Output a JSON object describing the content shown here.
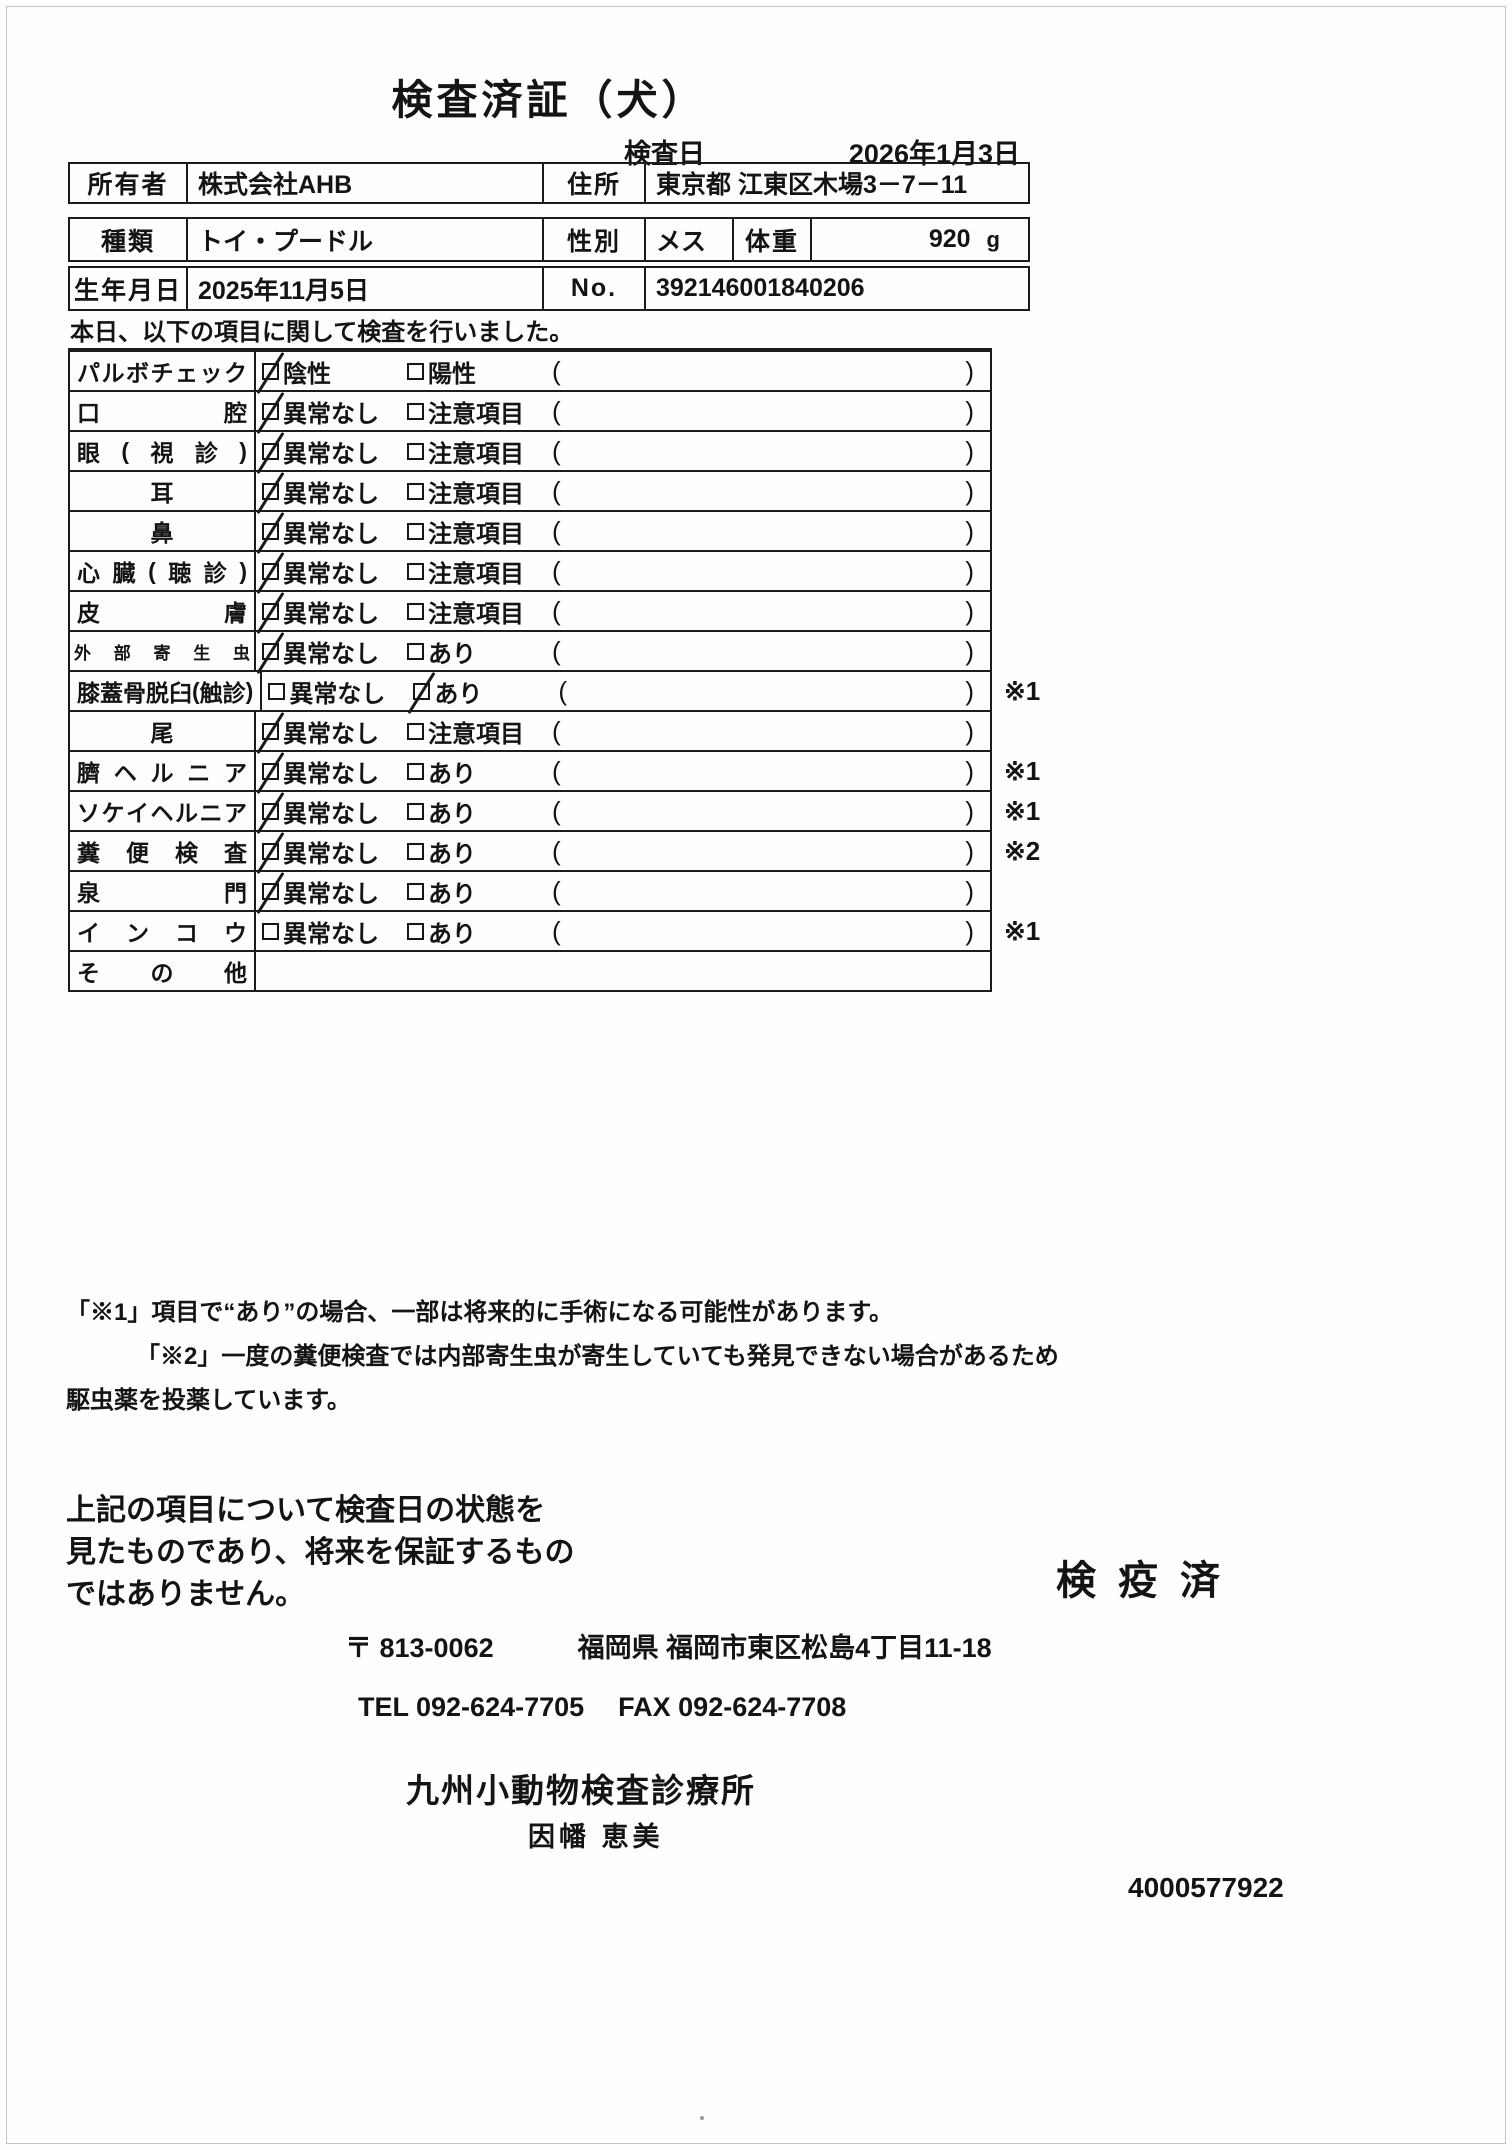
{
  "header": {
    "title": "検査済証（犬）",
    "date_label": "検査日",
    "date_value": "2026年1月3日"
  },
  "owner_table": {
    "owner_label": "所有者",
    "owner": "株式会社AHB",
    "address_label": "住所",
    "address": "東京都 江東区木場3－7－11"
  },
  "dog_table": {
    "breed_label": "種類",
    "breed": "トイ・プードル",
    "sex_label": "性別",
    "sex": "メス",
    "weight_label": "体重",
    "weight": "920",
    "weight_unit": "g",
    "birth_label": "生年月日",
    "birth": "2025年11月5日",
    "no_label": "No.",
    "no_value": "392146001840206"
  },
  "intro": "本日、以下の項目に関して検査を行いました。",
  "inspection": {
    "paren_open": "(",
    "paren_close": ")",
    "rows": [
      {
        "item": "パルボチェック",
        "align": "justify",
        "has_options": true,
        "opt1": "陰性",
        "opt1_checked": true,
        "opt2": "陽性",
        "opt2_checked": false,
        "note": ""
      },
      {
        "item": "口腔",
        "align": "justify",
        "has_options": true,
        "opt1": "異常なし",
        "opt1_checked": true,
        "opt2": "注意項目",
        "opt2_checked": false,
        "note": ""
      },
      {
        "item": "眼(視診)",
        "align": "justify",
        "has_options": true,
        "opt1": "異常なし",
        "opt1_checked": true,
        "opt2": "注意項目",
        "opt2_checked": false,
        "note": ""
      },
      {
        "item": "耳",
        "align": "center",
        "has_options": true,
        "opt1": "異常なし",
        "opt1_checked": true,
        "opt2": "注意項目",
        "opt2_checked": false,
        "note": ""
      },
      {
        "item": "鼻",
        "align": "center",
        "has_options": true,
        "opt1": "異常なし",
        "opt1_checked": true,
        "opt2": "注意項目",
        "opt2_checked": false,
        "note": ""
      },
      {
        "item": "心臓(聴診)",
        "align": "justify",
        "has_options": true,
        "opt1": "異常なし",
        "opt1_checked": true,
        "opt2": "注意項目",
        "opt2_checked": false,
        "note": ""
      },
      {
        "item": "皮膚",
        "align": "justify",
        "has_options": true,
        "opt1": "異常なし",
        "opt1_checked": true,
        "opt2": "注意項目",
        "opt2_checked": false,
        "note": ""
      },
      {
        "item": "外部寄生虫",
        "align": "justify",
        "has_options": true,
        "opt1": "異常なし",
        "opt1_checked": true,
        "opt2": "あり",
        "opt2_checked": false,
        "note": ""
      },
      {
        "item": "膝蓋骨脱臼(触診)",
        "align": "justify",
        "has_options": true,
        "opt1": "異常なし",
        "opt1_checked": false,
        "opt2": "あり",
        "opt2_checked": true,
        "note": "※1"
      },
      {
        "item": "尾",
        "align": "center",
        "has_options": true,
        "opt1": "異常なし",
        "opt1_checked": true,
        "opt2": "注意項目",
        "opt2_checked": false,
        "note": ""
      },
      {
        "item": "臍ヘルニア",
        "align": "justify",
        "has_options": true,
        "opt1": "異常なし",
        "opt1_checked": true,
        "opt2": "あり",
        "opt2_checked": false,
        "note": "※1"
      },
      {
        "item": "ソケイヘルニア",
        "align": "justify",
        "has_options": true,
        "opt1": "異常なし",
        "opt1_checked": true,
        "opt2": "あり",
        "opt2_checked": false,
        "note": "※1"
      },
      {
        "item": "糞便検査",
        "align": "justify",
        "has_options": true,
        "opt1": "異常なし",
        "opt1_checked": true,
        "opt2": "あり",
        "opt2_checked": false,
        "note": "※2"
      },
      {
        "item": "泉門",
        "align": "justify",
        "has_options": true,
        "opt1": "異常なし",
        "opt1_checked": true,
        "opt2": "あり",
        "opt2_checked": false,
        "note": ""
      },
      {
        "item": "インコウ",
        "align": "justify",
        "has_options": true,
        "opt1": "異常なし",
        "opt1_checked": false,
        "opt2": "あり",
        "opt2_checked": false,
        "note": "※1"
      },
      {
        "item": "その他",
        "align": "justify",
        "has_options": false,
        "opt1": "",
        "opt1_checked": false,
        "opt2": "",
        "opt2_checked": false,
        "note": ""
      }
    ]
  },
  "notes": [
    "「※1」項目で“あり”の場合、一部は将来的に手術になる可能性があります。",
    "「※2」一度の糞便検査では内部寄生虫が寄生していても発見できない場合があるため",
    "駆虫薬を投薬しています。"
  ],
  "disclaimer_lines": [
    "上記の項目について検査日の状態を",
    "見たものであり、将来を保証するもの",
    "ではありません。"
  ],
  "stamp": "検疫済",
  "clinic": {
    "postal": "〒 813-0062",
    "address": "福岡県 福岡市東区松島4丁目11-18",
    "tel": "TEL 092-624-7705",
    "fax": "FAX 092-624-7708",
    "name": "九州小動物検査診療所",
    "vet": "因幡 恵美",
    "serial": "4000577922"
  }
}
